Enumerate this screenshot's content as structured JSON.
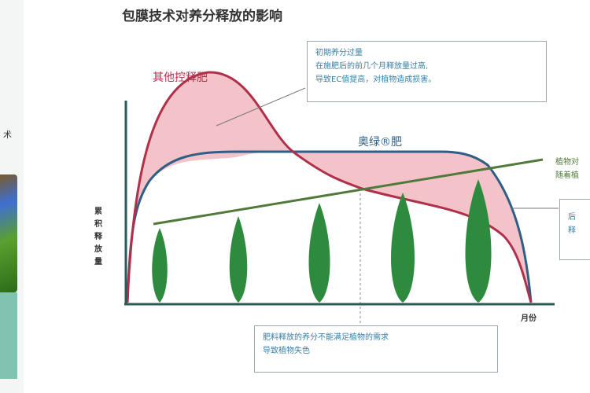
{
  "title": "包膜技术对养分释放的影响",
  "left_fragment": "术",
  "series_labels": {
    "other": "其他控释肥",
    "osmocote": "奥绿®肥"
  },
  "y_axis_label": "累积释放量",
  "x_axis_label": "月份",
  "callout_top": [
    "初期养分过量",
    "在施肥后的前几个月释放量过高,",
    "导致EC值提高，对植物造成损害。"
  ],
  "callout_bottom": [
    "肥料释放的养分不能满足植物的需求",
    "导致植物失色"
  ],
  "callout_right_green": [
    "植物对",
    "随着植"
  ],
  "callout_right_box": [
    "后",
    "释"
  ],
  "colors": {
    "other": "#b0304a",
    "osmocote": "#2f5f86",
    "demand": "#4f7a3a",
    "fill": "#f2b8bf",
    "tree": "#2e8b3e"
  }
}
